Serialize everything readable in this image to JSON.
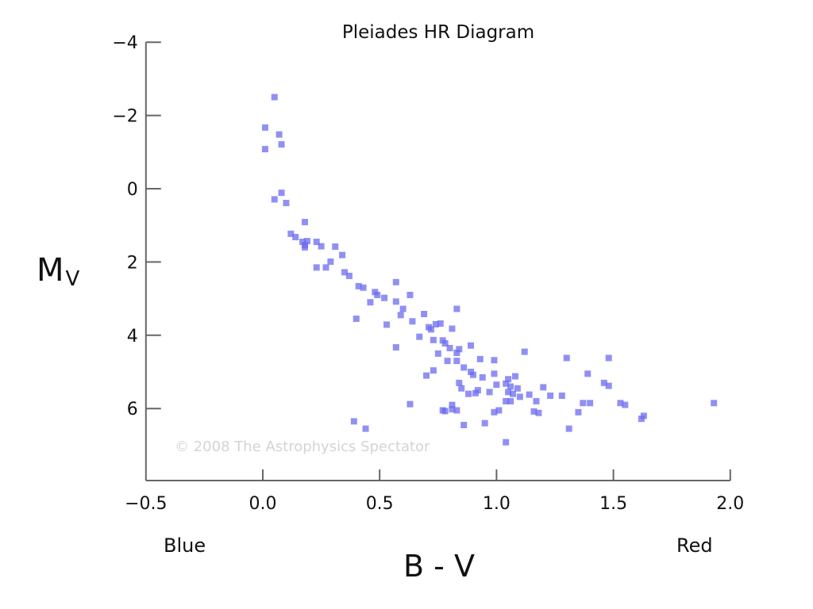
{
  "chart_data": {
    "type": "scatter",
    "title": "Pleiades HR Diagram",
    "xlabel": "B - V",
    "ylabel": "M",
    "ylabel_subscript": "V",
    "xlim": [
      -0.5,
      2.0
    ],
    "ylim": [
      -4,
      8
    ],
    "y_inverted": true,
    "xticks": [
      "−0.5",
      "0.0",
      "0.5",
      "1.0",
      "1.5",
      "2.0"
    ],
    "xtick_values": [
      -0.5,
      0.0,
      0.5,
      1.0,
      1.5,
      2.0
    ],
    "yticks": [
      "−4",
      "−2",
      "0",
      "2",
      "4",
      "6"
    ],
    "ytick_values": [
      -4,
      -2,
      0,
      2,
      4,
      6
    ],
    "grid": false,
    "annotations": {
      "left_x": "Blue",
      "right_x": "Red",
      "watermark": "© 2008 The Astrophysics Spectator"
    },
    "marker_color": "#6b6bf0",
    "series": [
      {
        "name": "Pleiades stars",
        "points": [
          [
            0.05,
            -2.5
          ],
          [
            0.01,
            -1.67
          ],
          [
            0.07,
            -1.48
          ],
          [
            0.08,
            -1.21
          ],
          [
            0.01,
            -1.08
          ],
          [
            0.08,
            0.11
          ],
          [
            0.05,
            0.29
          ],
          [
            0.1,
            0.39
          ],
          [
            0.18,
            0.91
          ],
          [
            0.12,
            1.23
          ],
          [
            0.14,
            1.32
          ],
          [
            0.17,
            1.45
          ],
          [
            0.18,
            1.54
          ],
          [
            0.18,
            1.6
          ],
          [
            0.19,
            1.43
          ],
          [
            0.23,
            1.45
          ],
          [
            0.25,
            1.57
          ],
          [
            0.31,
            1.58
          ],
          [
            0.34,
            1.81
          ],
          [
            0.29,
            1.99
          ],
          [
            0.27,
            2.15
          ],
          [
            0.23,
            2.15
          ],
          [
            0.35,
            2.28
          ],
          [
            0.37,
            2.38
          ],
          [
            0.41,
            2.66
          ],
          [
            0.43,
            2.7
          ],
          [
            0.46,
            3.1
          ],
          [
            0.48,
            2.82
          ],
          [
            0.49,
            2.9
          ],
          [
            0.52,
            2.98
          ],
          [
            0.4,
            3.55
          ],
          [
            0.57,
            2.55
          ],
          [
            0.57,
            3.08
          ],
          [
            0.6,
            3.28
          ],
          [
            0.59,
            3.45
          ],
          [
            0.63,
            2.9
          ],
          [
            0.64,
            3.62
          ],
          [
            0.53,
            3.71
          ],
          [
            0.57,
            4.33
          ],
          [
            0.69,
            3.42
          ],
          [
            0.71,
            3.78
          ],
          [
            0.72,
            3.84
          ],
          [
            0.74,
            3.7
          ],
          [
            0.76,
            3.68
          ],
          [
            0.81,
            3.82
          ],
          [
            0.83,
            3.28
          ],
          [
            0.67,
            4.04
          ],
          [
            0.73,
            4.13
          ],
          [
            0.77,
            4.14
          ],
          [
            0.78,
            4.22
          ],
          [
            0.8,
            4.35
          ],
          [
            0.83,
            4.48
          ],
          [
            0.84,
            4.38
          ],
          [
            0.75,
            4.5
          ],
          [
            0.79,
            4.7
          ],
          [
            0.83,
            4.7
          ],
          [
            0.89,
            4.28
          ],
          [
            0.73,
            4.96
          ],
          [
            0.7,
            5.1
          ],
          [
            0.86,
            4.88
          ],
          [
            0.89,
            5.0
          ],
          [
            0.9,
            5.08
          ],
          [
            0.93,
            4.65
          ],
          [
            0.99,
            4.68
          ],
          [
            0.94,
            5.15
          ],
          [
            0.99,
            5.05
          ],
          [
            1.05,
            5.2
          ],
          [
            1.08,
            5.12
          ],
          [
            1.12,
            4.45
          ],
          [
            1.04,
            5.32
          ],
          [
            1.05,
            5.55
          ],
          [
            1.06,
            5.4
          ],
          [
            1.07,
            5.6
          ],
          [
            1.09,
            5.45
          ],
          [
            1.1,
            5.68
          ],
          [
            1.14,
            5.62
          ],
          [
            1.0,
            5.35
          ],
          [
            0.97,
            5.55
          ],
          [
            0.92,
            5.5
          ],
          [
            0.91,
            5.58
          ],
          [
            0.84,
            5.3
          ],
          [
            0.85,
            5.45
          ],
          [
            0.88,
            5.6
          ],
          [
            1.04,
            5.8
          ],
          [
            1.06,
            5.8
          ],
          [
            1.17,
            5.8
          ],
          [
            1.2,
            5.42
          ],
          [
            1.23,
            5.65
          ],
          [
            1.28,
            5.65
          ],
          [
            1.3,
            4.62
          ],
          [
            1.39,
            5.05
          ],
          [
            1.48,
            4.62
          ],
          [
            1.46,
            5.3
          ],
          [
            1.48,
            5.38
          ],
          [
            1.37,
            5.85
          ],
          [
            1.4,
            5.85
          ],
          [
            1.53,
            5.85
          ],
          [
            1.55,
            5.9
          ],
          [
            1.35,
            6.1
          ],
          [
            1.31,
            6.55
          ],
          [
            1.62,
            6.28
          ],
          [
            1.63,
            6.2
          ],
          [
            1.93,
            5.85
          ],
          [
            0.78,
            6.07
          ],
          [
            0.81,
            6.02
          ],
          [
            0.83,
            6.05
          ],
          [
            0.81,
            5.9
          ],
          [
            0.77,
            6.05
          ],
          [
            0.99,
            6.1
          ],
          [
            1.01,
            6.05
          ],
          [
            1.16,
            6.08
          ],
          [
            1.18,
            6.12
          ],
          [
            0.63,
            5.88
          ],
          [
            0.86,
            6.45
          ],
          [
            0.95,
            6.4
          ],
          [
            1.04,
            6.92
          ],
          [
            0.39,
            6.35
          ],
          [
            0.44,
            6.55
          ]
        ]
      }
    ]
  }
}
